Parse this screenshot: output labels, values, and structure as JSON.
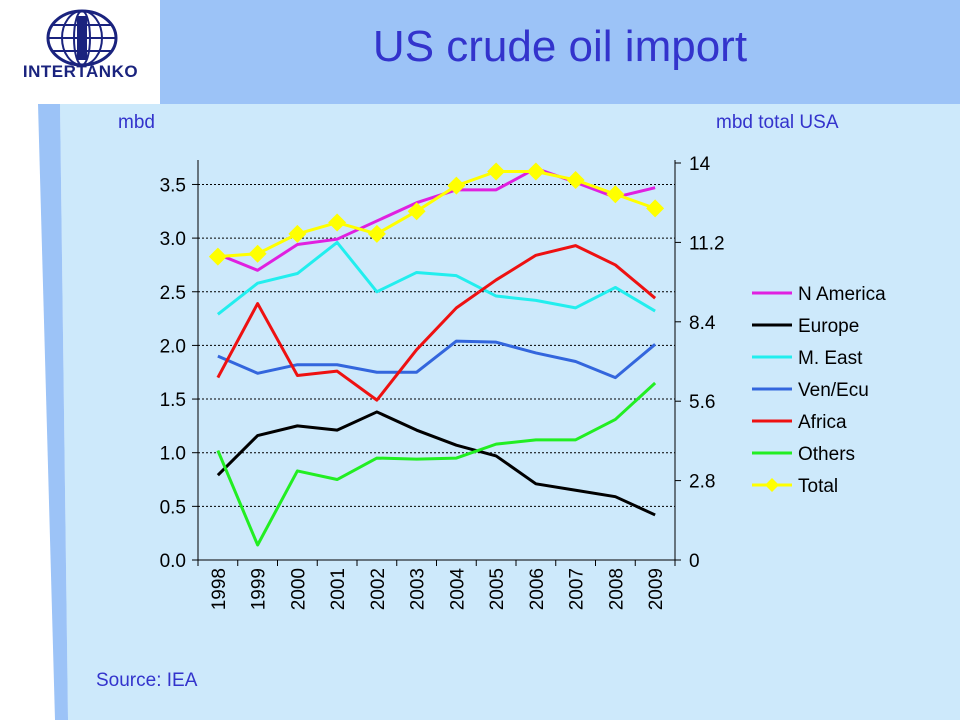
{
  "slide": {
    "title": "US crude oil import",
    "left_unit": "mbd",
    "right_unit": "mbd total USA",
    "source": "Source: IEA",
    "logo_text": "INTERTANKO",
    "colors": {
      "title": "#3333cc",
      "panel": "#cde9fb",
      "stripe": "#9cc3f7",
      "logo": "#1a237e"
    }
  },
  "chart_data": {
    "type": "line",
    "categories": [
      "1998",
      "1999",
      "2000",
      "2001",
      "2002",
      "2003",
      "2004",
      "2005",
      "2006",
      "2007",
      "2008",
      "2009"
    ],
    "ylim": [
      0,
      3.7
    ],
    "yticks": [
      "0.0",
      "0.5",
      "1.0",
      "1.5",
      "2.0",
      "2.5",
      "3.0",
      "3.5"
    ],
    "y2lim": [
      0,
      14
    ],
    "y2ticks": [
      "0",
      "2.8",
      "5.6",
      "8.4",
      "11.2",
      "14"
    ],
    "grid": true,
    "legend_position": "right",
    "series": [
      {
        "name": "N America",
        "color": "#e020e0",
        "axis": "left",
        "values": [
          2.85,
          2.7,
          2.94,
          2.99,
          3.16,
          3.33,
          3.45,
          3.45,
          3.65,
          3.52,
          3.38,
          3.47
        ]
      },
      {
        "name": "Europe",
        "color": "#000000",
        "axis": "left",
        "values": [
          0.79,
          1.16,
          1.25,
          1.21,
          1.38,
          1.21,
          1.07,
          0.97,
          0.71,
          0.65,
          0.59,
          0.42
        ]
      },
      {
        "name": "M. East",
        "color": "#22eeee",
        "axis": "left",
        "values": [
          2.29,
          2.58,
          2.67,
          2.96,
          2.5,
          2.68,
          2.65,
          2.46,
          2.42,
          2.35,
          2.54,
          2.32
        ]
      },
      {
        "name": "Ven/Ecu",
        "color": "#3366dd",
        "axis": "left",
        "values": [
          1.9,
          1.74,
          1.82,
          1.82,
          1.75,
          1.75,
          2.04,
          2.03,
          1.93,
          1.85,
          1.7,
          2.01
        ]
      },
      {
        "name": "Africa",
        "color": "#ee1111",
        "axis": "left",
        "values": [
          1.7,
          2.39,
          1.72,
          1.76,
          1.49,
          1.96,
          2.35,
          2.61,
          2.84,
          2.93,
          2.75,
          2.44
        ]
      },
      {
        "name": "Others",
        "color": "#22ee22",
        "axis": "left",
        "values": [
          1.02,
          0.14,
          0.83,
          0.75,
          0.95,
          0.94,
          0.95,
          1.08,
          1.12,
          1.12,
          1.31,
          1.65
        ]
      },
      {
        "name": "Total",
        "color": "#ffff00",
        "axis": "right",
        "marker": "diamond",
        "values": [
          10.7,
          10.8,
          11.5,
          11.9,
          11.5,
          12.3,
          13.2,
          13.7,
          13.7,
          13.4,
          12.9,
          12.4
        ]
      }
    ]
  }
}
